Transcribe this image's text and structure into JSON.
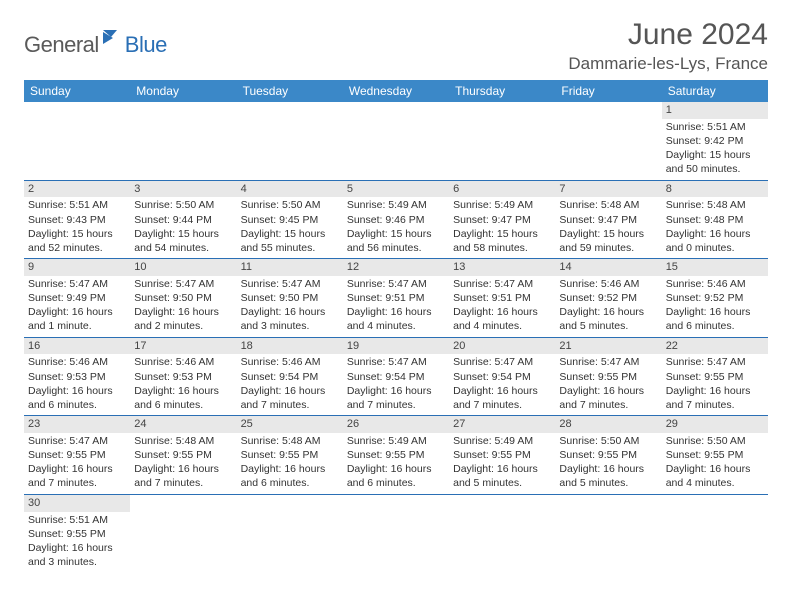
{
  "brand": {
    "name1": "General",
    "name2": "Blue"
  },
  "title": "June 2024",
  "location": "Dammarie-les-Lys, France",
  "colors": {
    "header_bg": "#3b88c8",
    "header_fg": "#ffffff",
    "row_divider": "#2a6fb5",
    "daynum_bg": "#e8e8e8",
    "text": "#333333",
    "page_bg": "#ffffff"
  },
  "fonts": {
    "title_size": 30,
    "location_size": 17,
    "header_size": 12,
    "cell_size": 10.5
  },
  "day_headers": [
    "Sunday",
    "Monday",
    "Tuesday",
    "Wednesday",
    "Thursday",
    "Friday",
    "Saturday"
  ],
  "weeks": [
    [
      null,
      null,
      null,
      null,
      null,
      null,
      {
        "n": "1",
        "sunrise": "5:51 AM",
        "sunset": "9:42 PM",
        "daylight": "15 hours and 50 minutes."
      }
    ],
    [
      {
        "n": "2",
        "sunrise": "5:51 AM",
        "sunset": "9:43 PM",
        "daylight": "15 hours and 52 minutes."
      },
      {
        "n": "3",
        "sunrise": "5:50 AM",
        "sunset": "9:44 PM",
        "daylight": "15 hours and 54 minutes."
      },
      {
        "n": "4",
        "sunrise": "5:50 AM",
        "sunset": "9:45 PM",
        "daylight": "15 hours and 55 minutes."
      },
      {
        "n": "5",
        "sunrise": "5:49 AM",
        "sunset": "9:46 PM",
        "daylight": "15 hours and 56 minutes."
      },
      {
        "n": "6",
        "sunrise": "5:49 AM",
        "sunset": "9:47 PM",
        "daylight": "15 hours and 58 minutes."
      },
      {
        "n": "7",
        "sunrise": "5:48 AM",
        "sunset": "9:47 PM",
        "daylight": "15 hours and 59 minutes."
      },
      {
        "n": "8",
        "sunrise": "5:48 AM",
        "sunset": "9:48 PM",
        "daylight": "16 hours and 0 minutes."
      }
    ],
    [
      {
        "n": "9",
        "sunrise": "5:47 AM",
        "sunset": "9:49 PM",
        "daylight": "16 hours and 1 minute."
      },
      {
        "n": "10",
        "sunrise": "5:47 AM",
        "sunset": "9:50 PM",
        "daylight": "16 hours and 2 minutes."
      },
      {
        "n": "11",
        "sunrise": "5:47 AM",
        "sunset": "9:50 PM",
        "daylight": "16 hours and 3 minutes."
      },
      {
        "n": "12",
        "sunrise": "5:47 AM",
        "sunset": "9:51 PM",
        "daylight": "16 hours and 4 minutes."
      },
      {
        "n": "13",
        "sunrise": "5:47 AM",
        "sunset": "9:51 PM",
        "daylight": "16 hours and 4 minutes."
      },
      {
        "n": "14",
        "sunrise": "5:46 AM",
        "sunset": "9:52 PM",
        "daylight": "16 hours and 5 minutes."
      },
      {
        "n": "15",
        "sunrise": "5:46 AM",
        "sunset": "9:52 PM",
        "daylight": "16 hours and 6 minutes."
      }
    ],
    [
      {
        "n": "16",
        "sunrise": "5:46 AM",
        "sunset": "9:53 PM",
        "daylight": "16 hours and 6 minutes."
      },
      {
        "n": "17",
        "sunrise": "5:46 AM",
        "sunset": "9:53 PM",
        "daylight": "16 hours and 6 minutes."
      },
      {
        "n": "18",
        "sunrise": "5:46 AM",
        "sunset": "9:54 PM",
        "daylight": "16 hours and 7 minutes."
      },
      {
        "n": "19",
        "sunrise": "5:47 AM",
        "sunset": "9:54 PM",
        "daylight": "16 hours and 7 minutes."
      },
      {
        "n": "20",
        "sunrise": "5:47 AM",
        "sunset": "9:54 PM",
        "daylight": "16 hours and 7 minutes."
      },
      {
        "n": "21",
        "sunrise": "5:47 AM",
        "sunset": "9:55 PM",
        "daylight": "16 hours and 7 minutes."
      },
      {
        "n": "22",
        "sunrise": "5:47 AM",
        "sunset": "9:55 PM",
        "daylight": "16 hours and 7 minutes."
      }
    ],
    [
      {
        "n": "23",
        "sunrise": "5:47 AM",
        "sunset": "9:55 PM",
        "daylight": "16 hours and 7 minutes."
      },
      {
        "n": "24",
        "sunrise": "5:48 AM",
        "sunset": "9:55 PM",
        "daylight": "16 hours and 7 minutes."
      },
      {
        "n": "25",
        "sunrise": "5:48 AM",
        "sunset": "9:55 PM",
        "daylight": "16 hours and 6 minutes."
      },
      {
        "n": "26",
        "sunrise": "5:49 AM",
        "sunset": "9:55 PM",
        "daylight": "16 hours and 6 minutes."
      },
      {
        "n": "27",
        "sunrise": "5:49 AM",
        "sunset": "9:55 PM",
        "daylight": "16 hours and 5 minutes."
      },
      {
        "n": "28",
        "sunrise": "5:50 AM",
        "sunset": "9:55 PM",
        "daylight": "16 hours and 5 minutes."
      },
      {
        "n": "29",
        "sunrise": "5:50 AM",
        "sunset": "9:55 PM",
        "daylight": "16 hours and 4 minutes."
      }
    ],
    [
      {
        "n": "30",
        "sunrise": "5:51 AM",
        "sunset": "9:55 PM",
        "daylight": "16 hours and 3 minutes."
      },
      null,
      null,
      null,
      null,
      null,
      null
    ]
  ],
  "labels": {
    "sunrise": "Sunrise:",
    "sunset": "Sunset:",
    "daylight": "Daylight:"
  }
}
